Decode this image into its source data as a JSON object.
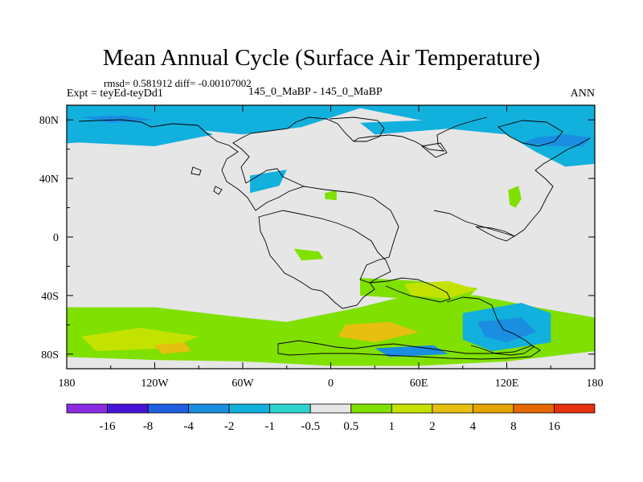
{
  "chart_data": {
    "type": "heatmap",
    "title": "Mean Annual Cycle (Surface Air Temperature)",
    "stats_line": "rmsd= 0.581912 diff= -0.00107002",
    "left_label": "Expt = teyEd-teyDd1",
    "center_label": "145_0_MaBP - 145_0_MaBP",
    "right_label": "ANN",
    "x_axis": {
      "range": [
        -180,
        180
      ],
      "ticks": [
        -180,
        -120,
        -60,
        0,
        60,
        120,
        180
      ],
      "tick_labels": [
        "180",
        "120W",
        "60W",
        "0",
        "60E",
        "120E",
        "180"
      ]
    },
    "y_axis": {
      "range": [
        -90,
        90
      ],
      "ticks": [
        80,
        40,
        0,
        -40,
        -80
      ],
      "tick_labels": [
        "80N",
        "40N",
        "0",
        "40S",
        "80S"
      ]
    },
    "colorbar": {
      "labels": [
        "-16",
        "-8",
        "-4",
        "-2",
        "-1",
        "-0.5",
        "0.5",
        "1",
        "2",
        "4",
        "8",
        "16"
      ],
      "colors": [
        "#8a2be2",
        "#4a12d8",
        "#1e5fe0",
        "#1a8ee0",
        "#12b0dd",
        "#2dd4cf",
        "#e6e6e6",
        "#80e000",
        "#c4e200",
        "#e6c010",
        "#e6a400",
        "#e66800",
        "#e63010"
      ]
    },
    "regions": [
      {
        "name": "arctic-pacific-cyan",
        "bin": 4,
        "lonlat": [
          [
            -180,
            90
          ],
          [
            180,
            90
          ],
          [
            180,
            72
          ],
          [
            120,
            74
          ],
          [
            60,
            80
          ],
          [
            20,
            88
          ],
          [
            -20,
            75
          ],
          [
            -60,
            70
          ],
          [
            -110,
            75
          ],
          [
            -150,
            66
          ],
          [
            -180,
            64
          ]
        ]
      },
      {
        "name": "arctic-east-cyan",
        "bin": 4,
        "lonlat": [
          [
            20,
            78
          ],
          [
            70,
            80
          ],
          [
            120,
            78
          ],
          [
            150,
            76
          ],
          [
            180,
            72
          ],
          [
            180,
            50
          ],
          [
            160,
            48
          ],
          [
            140,
            58
          ],
          [
            120,
            70
          ],
          [
            80,
            74
          ],
          [
            30,
            70
          ]
        ]
      },
      {
        "name": "siberia-blue",
        "bin": 3,
        "lonlat": [
          [
            130,
            64
          ],
          [
            150,
            62
          ],
          [
            172,
            62
          ],
          [
            178,
            68
          ],
          [
            160,
            70
          ],
          [
            140,
            68
          ]
        ]
      },
      {
        "name": "north-pacific-cyan",
        "bin": 4,
        "lonlat": [
          [
            -180,
            65
          ],
          [
            -120,
            62
          ],
          [
            -80,
            70
          ],
          [
            -100,
            78
          ],
          [
            -180,
            78
          ]
        ]
      },
      {
        "name": "north-america-cyan",
        "bin": 4,
        "lonlat": [
          [
            -55,
            42
          ],
          [
            -30,
            46
          ],
          [
            -35,
            35
          ],
          [
            -55,
            30
          ],
          [
            -55,
            35
          ]
        ]
      },
      {
        "name": "arctic-north-blue",
        "bin": 3,
        "lonlat": [
          [
            -170,
            82
          ],
          [
            -140,
            83
          ],
          [
            -120,
            80
          ],
          [
            -150,
            78
          ]
        ]
      },
      {
        "name": "asia-green",
        "bin": 7,
        "lonlat": [
          [
            121,
            32
          ],
          [
            128,
            35
          ],
          [
            130,
            26
          ],
          [
            126,
            20
          ],
          [
            122,
            22
          ]
        ]
      },
      {
        "name": "africa-green",
        "bin": 7,
        "lonlat": [
          [
            -4,
            30
          ],
          [
            4,
            32
          ],
          [
            4,
            25
          ],
          [
            -4,
            26
          ]
        ]
      },
      {
        "name": "southern-ocean-green",
        "bin": 7,
        "lonlat": [
          [
            -180,
            -48
          ],
          [
            -120,
            -48
          ],
          [
            -60,
            -55
          ],
          [
            -30,
            -58
          ],
          [
            20,
            -48
          ],
          [
            60,
            -38
          ],
          [
            100,
            -40
          ],
          [
            140,
            -48
          ],
          [
            180,
            -55
          ],
          [
            180,
            -78
          ],
          [
            120,
            -85
          ],
          [
            60,
            -88
          ],
          [
            0,
            -88
          ],
          [
            -60,
            -85
          ],
          [
            -120,
            -84
          ],
          [
            -180,
            -82
          ]
        ]
      },
      {
        "name": "southern-ocean-yellow",
        "bin": 8,
        "lonlat": [
          [
            -170,
            -68
          ],
          [
            -130,
            -62
          ],
          [
            -90,
            -68
          ],
          [
            -110,
            -76
          ],
          [
            -160,
            -78
          ]
        ]
      },
      {
        "name": "southern-ocean-orange",
        "bin": 9,
        "lonlat": [
          [
            -120,
            -74
          ],
          [
            -100,
            -72
          ],
          [
            -95,
            -78
          ],
          [
            -115,
            -80
          ]
        ]
      },
      {
        "name": "southern-ocean-orange-2",
        "bin": 9,
        "lonlat": [
          [
            10,
            -60
          ],
          [
            40,
            -58
          ],
          [
            60,
            -65
          ],
          [
            30,
            -72
          ],
          [
            5,
            -68
          ]
        ]
      },
      {
        "name": "south-indian-green",
        "bin": 7,
        "lonlat": [
          [
            20,
            -28
          ],
          [
            60,
            -30
          ],
          [
            100,
            -35
          ],
          [
            90,
            -45
          ],
          [
            50,
            -42
          ],
          [
            20,
            -40
          ]
        ]
      },
      {
        "name": "south-indian-yellow",
        "bin": 8,
        "lonlat": [
          [
            50,
            -32
          ],
          [
            80,
            -30
          ],
          [
            100,
            -36
          ],
          [
            80,
            -42
          ],
          [
            55,
            -40
          ]
        ]
      },
      {
        "name": "southern-ocean-cyan",
        "bin": 4,
        "lonlat": [
          [
            90,
            -52
          ],
          [
            130,
            -45
          ],
          [
            150,
            -52
          ],
          [
            150,
            -72
          ],
          [
            110,
            -78
          ],
          [
            90,
            -70
          ]
        ]
      },
      {
        "name": "southern-ocean-blue",
        "bin": 3,
        "lonlat": [
          [
            100,
            -58
          ],
          [
            130,
            -55
          ],
          [
            140,
            -65
          ],
          [
            120,
            -72
          ],
          [
            105,
            -68
          ]
        ]
      },
      {
        "name": "antarctic-blue",
        "bin": 3,
        "lonlat": [
          [
            30,
            -76
          ],
          [
            70,
            -74
          ],
          [
            80,
            -80
          ],
          [
            40,
            -82
          ]
        ]
      },
      {
        "name": "atlantic-green",
        "bin": 7,
        "lonlat": [
          [
            -25,
            -8
          ],
          [
            -8,
            -10
          ],
          [
            -5,
            -15
          ],
          [
            -20,
            -16
          ]
        ]
      }
    ]
  }
}
